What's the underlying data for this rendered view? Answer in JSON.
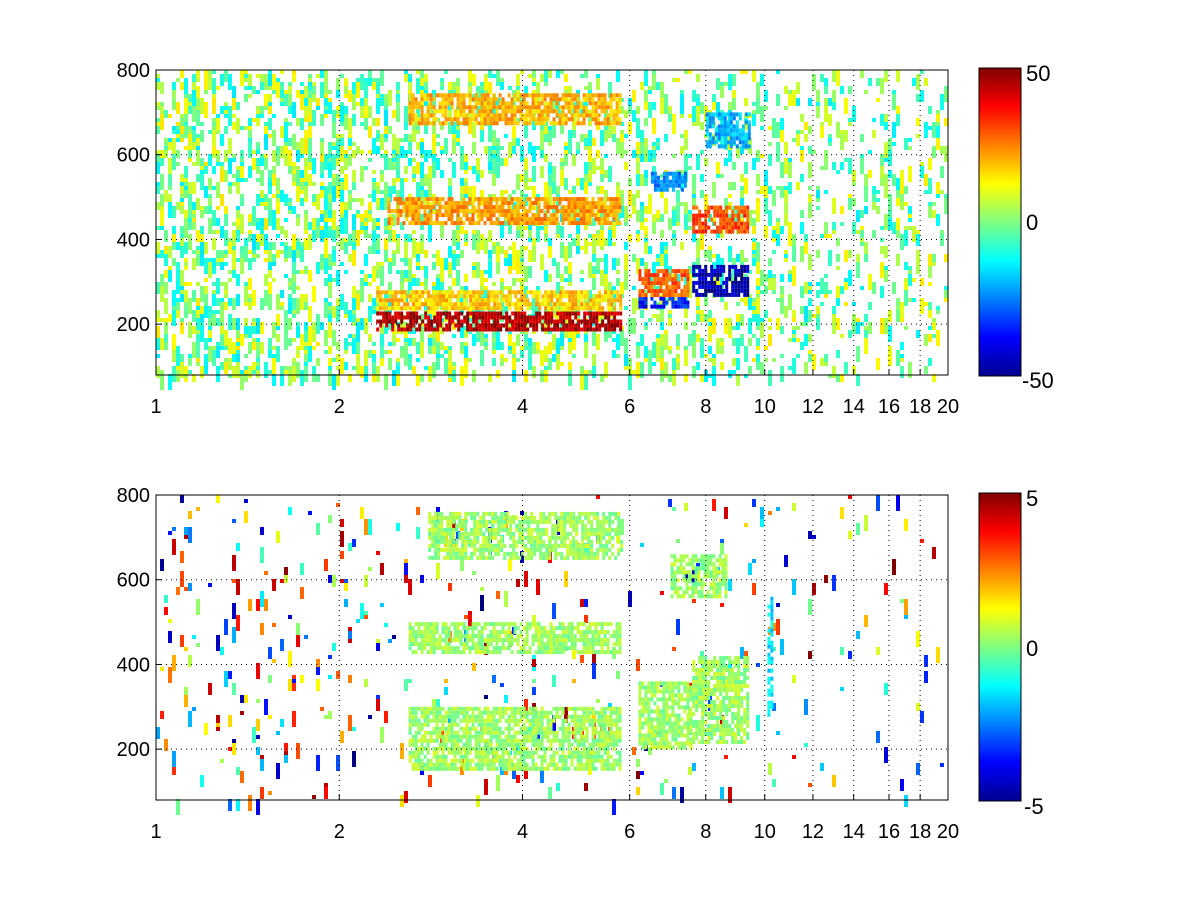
{
  "chart_data": [
    {
      "type": "heatmap",
      "title": "",
      "xlabel": "",
      "ylabel": "",
      "xlim": [
        1,
        20
      ],
      "ylim": [
        80,
        800
      ],
      "x_scale": "log",
      "x_ticks": [
        1,
        2,
        4,
        6,
        8,
        10,
        12,
        14,
        16,
        18,
        20
      ],
      "x_tick_labels": [
        "1",
        "2",
        "4",
        "6",
        "8",
        "10",
        "12",
        "14",
        "16",
        "18",
        "20"
      ],
      "y_ticks": [
        200,
        400,
        600,
        800
      ],
      "y_tick_labels": [
        "200",
        "400",
        "600",
        "800"
      ],
      "grid": "dotted",
      "colormap": "jet",
      "clim": [
        -50,
        50
      ],
      "colorbar_tick_labels": [
        "50",
        "0",
        "-50"
      ],
      "colorbar_position": "right",
      "bands": [
        {
          "x": [
            2.3,
            5.8
          ],
          "y": [
            190,
            230
          ],
          "value": 45
        },
        {
          "x": [
            2.3,
            5.8
          ],
          "y": [
            240,
            280
          ],
          "value": 18
        },
        {
          "x": [
            2.4,
            5.8
          ],
          "y": [
            440,
            500
          ],
          "value": 22
        },
        {
          "x": [
            2.6,
            5.8
          ],
          "y": [
            670,
            745
          ],
          "value": 20
        },
        {
          "x": [
            6.2,
            7.5
          ],
          "y": [
            240,
            265
          ],
          "value": -35
        },
        {
          "x": [
            6.2,
            7.5
          ],
          "y": [
            270,
            330
          ],
          "value": 28
        },
        {
          "x": [
            7.6,
            9.4
          ],
          "y": [
            270,
            340
          ],
          "value": -45
        },
        {
          "x": [
            7.6,
            9.4
          ],
          "y": [
            420,
            480
          ],
          "value": 30
        },
        {
          "x": [
            6.5,
            7.4
          ],
          "y": [
            520,
            560
          ],
          "value": -25
        },
        {
          "x": [
            8.0,
            9.4
          ],
          "y": [
            620,
            700
          ],
          "value": -20
        }
      ],
      "scatter_value_range": [
        -15,
        15
      ]
    },
    {
      "type": "heatmap",
      "title": "",
      "xlabel": "",
      "ylabel": "",
      "xlim": [
        1,
        20
      ],
      "ylim": [
        80,
        800
      ],
      "x_scale": "log",
      "x_ticks": [
        1,
        2,
        4,
        6,
        8,
        10,
        12,
        14,
        16,
        18,
        20
      ],
      "x_tick_labels": [
        "1",
        "2",
        "4",
        "6",
        "8",
        "10",
        "12",
        "14",
        "16",
        "18",
        "20"
      ],
      "y_ticks": [
        200,
        400,
        600,
        800
      ],
      "y_tick_labels": [
        "200",
        "400",
        "600",
        "800"
      ],
      "grid": "dotted",
      "colormap": "jet",
      "clim": [
        -5,
        5
      ],
      "colorbar_tick_labels": [
        "5",
        "0",
        "-5"
      ],
      "colorbar_position": "right",
      "bands": [
        {
          "x": [
            2.6,
            5.8
          ],
          "y": [
            150,
            300
          ],
          "value": 0.3
        },
        {
          "x": [
            6.2,
            7.6
          ],
          "y": [
            200,
            360
          ],
          "value": 0.3
        },
        {
          "x": [
            7.6,
            9.4
          ],
          "y": [
            220,
            420
          ],
          "value": 0.3
        },
        {
          "x": [
            2.6,
            5.8
          ],
          "y": [
            430,
            500
          ],
          "value": 0.3
        },
        {
          "x": [
            2.8,
            5.8
          ],
          "y": [
            650,
            760
          ],
          "value": 0.3
        },
        {
          "x": [
            7.0,
            8.6
          ],
          "y": [
            560,
            660
          ],
          "value": 0.3
        },
        {
          "x": [
            10.1,
            10.3
          ],
          "y": [
            280,
            560
          ],
          "value": -1.5
        }
      ],
      "scatter_value_range": [
        -5,
        5
      ]
    }
  ]
}
